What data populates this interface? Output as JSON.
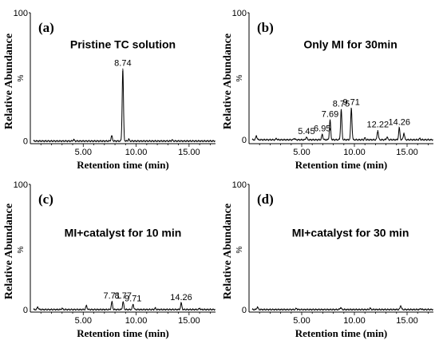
{
  "chart_data": [
    {
      "type": "line",
      "panel_label": "(a)",
      "annotation": "Pristine TC solution",
      "xlabel": "Retention time (min)",
      "ylabel": "Relative Abundance",
      "y_unit": "%",
      "y_top_tick": "100",
      "y_zero_tick": "0",
      "x_ticks": [
        "5.00",
        "10.00",
        "15.00"
      ],
      "xlim": [
        0,
        17.5
      ],
      "ylim": [
        0,
        100
      ],
      "baseline": 2,
      "peaks": [
        {
          "x": 7.69,
          "y": 6,
          "label": ""
        },
        {
          "x": 8.74,
          "y": 57,
          "label": "8.74"
        }
      ],
      "noise": [
        [
          4.1,
          3.2
        ],
        [
          9.3,
          3.5
        ],
        [
          13.4,
          3.0
        ]
      ]
    },
    {
      "type": "line",
      "panel_label": "(b)",
      "annotation": "Only MI for 30min",
      "xlabel": "Retention time (min)",
      "ylabel": "Relative Abundance",
      "y_unit": "%",
      "y_top_tick": "100",
      "y_zero_tick": "0",
      "x_ticks": [
        "5.00",
        "10.00",
        "15.00"
      ],
      "xlim": [
        0,
        17.5
      ],
      "ylim": [
        0,
        100
      ],
      "baseline": 3,
      "peaks": [
        {
          "x": 0.7,
          "y": 6,
          "label": ""
        },
        {
          "x": 5.45,
          "y": 5,
          "label": "5.45"
        },
        {
          "x": 6.95,
          "y": 7,
          "label": "6.95"
        },
        {
          "x": 7.69,
          "y": 18,
          "label": "7.69"
        },
        {
          "x": 8.75,
          "y": 26,
          "label": "8.75"
        },
        {
          "x": 9.71,
          "y": 27,
          "label": "9.71"
        },
        {
          "x": 12.22,
          "y": 10,
          "label": "12.22"
        },
        {
          "x": 13.1,
          "y": 5,
          "label": ""
        },
        {
          "x": 14.26,
          "y": 12,
          "label": "14.26"
        },
        {
          "x": 14.7,
          "y": 8,
          "label": ""
        }
      ],
      "noise": [
        [
          2.6,
          4.0
        ],
        [
          4.3,
          4.2
        ],
        [
          11.0,
          4.5
        ],
        [
          16.2,
          4.0
        ]
      ]
    },
    {
      "type": "line",
      "panel_label": "(c)",
      "annotation": "MI+catalyst for 10 min",
      "xlabel": "Retention time (min)",
      "ylabel": "Relative Abundance",
      "y_unit": "%",
      "y_top_tick": "100",
      "y_zero_tick": "0",
      "x_ticks": [
        "5.00",
        "10.00",
        "15.00"
      ],
      "xlim": [
        0,
        17.5
      ],
      "ylim": [
        0,
        100
      ],
      "baseline": 2,
      "peaks": [
        {
          "x": 0.7,
          "y": 4,
          "label": ""
        },
        {
          "x": 5.3,
          "y": 5,
          "label": ""
        },
        {
          "x": 7.71,
          "y": 8,
          "label": "7.71"
        },
        {
          "x": 8.77,
          "y": 8,
          "label": "8.77"
        },
        {
          "x": 9.71,
          "y": 6,
          "label": "9.71"
        },
        {
          "x": 14.26,
          "y": 7,
          "label": "14.26"
        }
      ],
      "noise": [
        [
          3.0,
          3.0
        ],
        [
          11.8,
          3.2
        ],
        [
          16.0,
          3.0
        ]
      ]
    },
    {
      "type": "line",
      "panel_label": "(d)",
      "annotation": "MI+catalyst for 30 min",
      "xlabel": "Retention time (min)",
      "ylabel": "Relative Abundance",
      "y_unit": "%",
      "y_top_tick": "100",
      "y_zero_tick": "0",
      "x_ticks": [
        "5.00",
        "10.00",
        "15.00"
      ],
      "xlim": [
        0,
        17.5
      ],
      "ylim": [
        0,
        100
      ],
      "baseline": 2,
      "peaks": [
        {
          "x": 0.8,
          "y": 4,
          "label": ""
        },
        {
          "x": 8.7,
          "y": 3.5,
          "label": ""
        },
        {
          "x": 14.4,
          "y": 5,
          "label": ""
        }
      ],
      "noise": [
        [
          4.5,
          3.0
        ],
        [
          11.5,
          3.0
        ],
        [
          16.3,
          2.8
        ]
      ]
    }
  ]
}
